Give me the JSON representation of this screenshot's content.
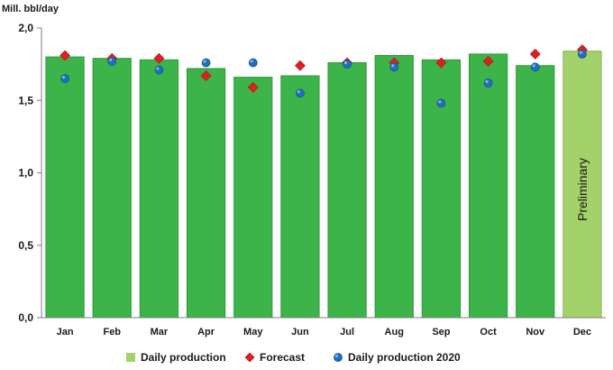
{
  "chart_data": {
    "type": "bar",
    "unit_label": "Mill. bbl/day",
    "title": "",
    "xlabel": "",
    "ylabel": "",
    "ylim": [
      0,
      2.0
    ],
    "yticks": [
      "0,0",
      "0,5",
      "1,0",
      "1,5",
      "2,0"
    ],
    "grid": false,
    "legend_position": "bottom",
    "categories": [
      "Jan",
      "Feb",
      "Mar",
      "Apr",
      "May",
      "Jun",
      "Jul",
      "Aug",
      "Sep",
      "Oct",
      "Nov",
      "Dec"
    ],
    "series": [
      {
        "name": "Daily production",
        "kind": "bar",
        "values": [
          1.8,
          1.79,
          1.78,
          1.72,
          1.66,
          1.67,
          1.76,
          1.81,
          1.78,
          1.82,
          1.74,
          1.84
        ]
      },
      {
        "name": "Forecast",
        "kind": "marker-diamond",
        "values": [
          1.81,
          1.79,
          1.79,
          1.67,
          1.59,
          1.74,
          1.76,
          1.76,
          1.76,
          1.77,
          1.82,
          1.85
        ]
      },
      {
        "name": "Daily production 2020",
        "kind": "marker-circle",
        "values": [
          1.65,
          1.77,
          1.71,
          1.76,
          1.76,
          1.55,
          1.75,
          1.73,
          1.48,
          1.62,
          1.73,
          1.82
        ]
      }
    ],
    "annotations": [
      {
        "category": "Dec",
        "text": "Preliminary"
      }
    ],
    "colors": {
      "bar": "#3cb44a",
      "bar_stroke": "#2e9a3a",
      "bar_preliminary": "#a3d16a",
      "bar_preliminary_stroke": "#86b64e",
      "forecast": "#e02020",
      "production_2020": "#1f6fc0",
      "axis": "#7f7f7f"
    }
  }
}
